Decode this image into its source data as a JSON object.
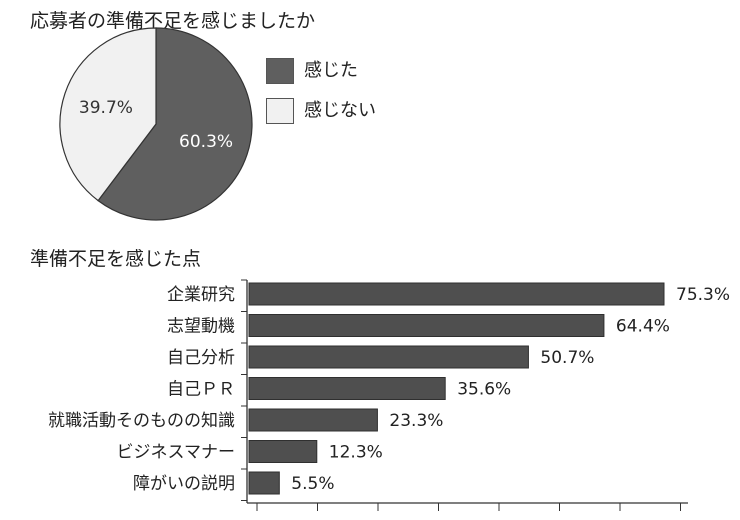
{
  "pie_title": "応募者の準備不足を感じましたか",
  "bar_title": "準備不足を感じた点",
  "colors": {
    "dark": "#5f5f5f",
    "light": "#f1f1f1",
    "bar": "#4f4f4f",
    "stroke": "#333333"
  },
  "chart_data": [
    {
      "type": "pie",
      "title": "応募者の準備不足を感じましたか",
      "legend_position": "right",
      "slices": [
        {
          "name": "感じた",
          "value": 60.3,
          "label": "60.3%",
          "color": "#5f5f5f"
        },
        {
          "name": "感じない",
          "value": 39.7,
          "label": "39.7%",
          "color": "#f1f1f1"
        }
      ]
    },
    {
      "type": "bar",
      "orientation": "horizontal",
      "title": "準備不足を感じた点",
      "categories": [
        "企業研究",
        "志望動機",
        "自己分析",
        "自己ＰＲ",
        "就職活動そのものの知識",
        "ビジネスマナー",
        "障がいの説明"
      ],
      "values": [
        75.3,
        64.4,
        50.7,
        35.6,
        23.3,
        12.3,
        5.5
      ],
      "value_labels": [
        "75.3%",
        "64.4%",
        "50.7%",
        "35.6%",
        "23.3%",
        "12.3%",
        "5.5%"
      ],
      "xlim": [
        0,
        75.3
      ],
      "grid": false
    }
  ]
}
